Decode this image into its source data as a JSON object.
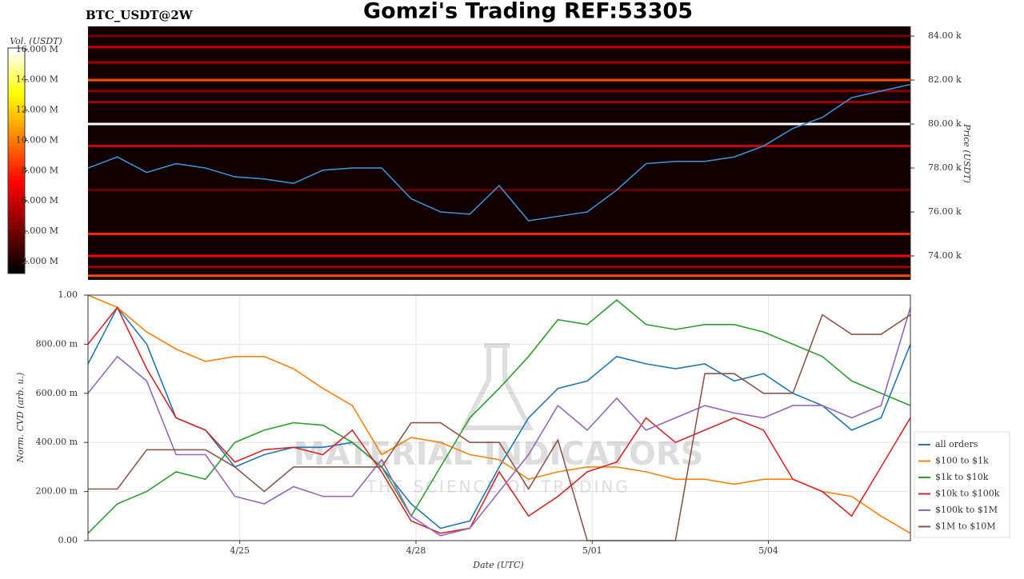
{
  "title": "Gomzi's Trading REF:53305",
  "watermark": {
    "title": "MATERIAL INDICATORS",
    "subtitle": "THE SCIENCE OF TRADING"
  },
  "chart_data": [
    {
      "type": "heatmap",
      "title": "BTC_USDT@2W",
      "ylabel": "Price (USDT)",
      "colorbar_label": "Vol. (USDT)",
      "x": [
        "4/22 10:00",
        "4/22 22:00",
        "4/23 10:00",
        "4/23 22:00",
        "4/24 10:00",
        "4/24 22:00",
        "4/25 10:00",
        "4/25 22:00",
        "4/26 10:00",
        "4/26 22:00",
        "4/27 10:00",
        "4/27 22:00",
        "4/28 10:00",
        "4/28 22:00",
        "4/29 10:00",
        "4/29 22:00",
        "4/30 10:00",
        "4/30 22:00",
        "5/01 10:00",
        "5/01 22:00",
        "5/02 10:00",
        "5/02 22:00",
        "5/03 10:00",
        "5/03 22:00",
        "5/04 10:00",
        "5/04 22:00",
        "5/05 10:00",
        "5/05 22:00",
        "5/06 10:00"
      ],
      "series": [
        {
          "name": "Price",
          "color": "#3b8fd0",
          "values": [
            78000,
            78500,
            77800,
            78200,
            78000,
            77600,
            77500,
            77300,
            77900,
            78000,
            78000,
            76600,
            76000,
            75900,
            77200,
            75600,
            75800,
            76000,
            77000,
            78200,
            78300,
            78300,
            78500,
            79000,
            79800,
            80300,
            81200,
            81500,
            81800
          ]
        }
      ],
      "levels": {
        "prices": [
          84000,
          83500,
          82800,
          82000,
          81500,
          81000,
          80000,
          79000,
          77000,
          75000,
          74000,
          73500,
          73100
        ],
        "volumes": [
          4000000,
          6000000,
          5000000,
          9000000,
          4500000,
          5000000,
          16000000,
          6000000,
          3500000,
          8000000,
          7000000,
          5000000,
          9000000
        ]
      },
      "xlim": [
        "4/22 10:00",
        "5/06 10:00"
      ],
      "ylim": [
        72910,
        84440
      ],
      "yticks": [
        {
          "value": 74000,
          "label": "74.00 k"
        },
        {
          "value": 76000,
          "label": "76.00 k"
        },
        {
          "value": 78000,
          "label": "78.00 k"
        },
        {
          "value": 80000,
          "label": "80.00 k"
        },
        {
          "value": 82000,
          "label": "82.00 k"
        },
        {
          "value": 84000,
          "label": "84.00 k"
        }
      ],
      "clim": [
        1200000,
        16100000
      ],
      "cticks": [
        {
          "value": 2000000,
          "label": "2.000 M"
        },
        {
          "value": 4000000,
          "label": "4.000 M"
        },
        {
          "value": 6000000,
          "label": "6.000 M"
        },
        {
          "value": 8000000,
          "label": "8.000 M"
        },
        {
          "value": 10000000,
          "label": "10.000 M"
        },
        {
          "value": 12000000,
          "label": "12.000 M"
        },
        {
          "value": 14000000,
          "label": "14.000 M"
        },
        {
          "value": 16000000,
          "label": "16.000 M"
        }
      ]
    },
    {
      "type": "line",
      "xlabel": "Date (UTC)",
      "ylabel": "Norm. CVD (arb. u.)",
      "grid": true,
      "legend": "lower right",
      "x": [
        "4/22 10:00",
        "4/22 22:00",
        "4/23 10:00",
        "4/23 22:00",
        "4/24 10:00",
        "4/24 22:00",
        "4/25 10:00",
        "4/25 22:00",
        "4/26 10:00",
        "4/26 22:00",
        "4/27 10:00",
        "4/27 22:00",
        "4/28 10:00",
        "4/28 22:00",
        "4/29 10:00",
        "4/29 22:00",
        "4/30 10:00",
        "4/30 22:00",
        "5/01 10:00",
        "5/01 22:00",
        "5/02 10:00",
        "5/02 22:00",
        "5/03 10:00",
        "5/03 22:00",
        "5/04 10:00",
        "5/04 22:00",
        "5/05 10:00",
        "5/05 22:00",
        "5/06 10:00"
      ],
      "series": [
        {
          "name": "all orders",
          "color": "#1f77b4",
          "values": [
            0.72,
            0.95,
            0.8,
            0.5,
            0.45,
            0.3,
            0.35,
            0.38,
            0.38,
            0.4,
            0.3,
            0.15,
            0.05,
            0.08,
            0.3,
            0.5,
            0.62,
            0.65,
            0.75,
            0.72,
            0.7,
            0.72,
            0.65,
            0.68,
            0.6,
            0.55,
            0.45,
            0.5,
            0.8
          ]
        },
        {
          "name": "$100 to $1k",
          "color": "#ff7f0e",
          "values": [
            1.0,
            0.95,
            0.85,
            0.78,
            0.73,
            0.75,
            0.75,
            0.7,
            0.62,
            0.55,
            0.35,
            0.42,
            0.4,
            0.35,
            0.33,
            0.25,
            0.28,
            0.3,
            0.3,
            0.28,
            0.25,
            0.25,
            0.23,
            0.25,
            0.25,
            0.2,
            0.18,
            0.1,
            0.03
          ]
        },
        {
          "name": "$1k to $10k",
          "color": "#2ca02c",
          "values": [
            0.03,
            0.15,
            0.2,
            0.28,
            0.25,
            0.4,
            0.45,
            0.48,
            0.47,
            0.4,
            0.3,
            0.1,
            0.3,
            0.5,
            0.62,
            0.75,
            0.9,
            0.88,
            0.98,
            0.88,
            0.86,
            0.88,
            0.88,
            0.85,
            0.8,
            0.75,
            0.65,
            0.6,
            0.55
          ]
        },
        {
          "name": "$10k to $100k",
          "color": "#d62728",
          "values": [
            0.8,
            0.95,
            0.7,
            0.5,
            0.45,
            0.32,
            0.37,
            0.38,
            0.35,
            0.45,
            0.28,
            0.08,
            0.03,
            0.05,
            0.28,
            0.1,
            0.18,
            0.28,
            0.32,
            0.5,
            0.4,
            0.45,
            0.5,
            0.45,
            0.25,
            0.2,
            0.1,
            0.3,
            0.5
          ]
        },
        {
          "name": "$100k to $1M",
          "color": "#9467bd",
          "values": [
            0.6,
            0.75,
            0.65,
            0.35,
            0.35,
            0.18,
            0.15,
            0.22,
            0.18,
            0.18,
            0.33,
            0.1,
            0.02,
            0.05,
            0.2,
            0.35,
            0.55,
            0.45,
            0.58,
            0.45,
            0.5,
            0.55,
            0.52,
            0.5,
            0.55,
            0.55,
            0.5,
            0.55,
            0.95
          ]
        },
        {
          "name": "$1M to $10M",
          "color": "#8c564b",
          "values": [
            0.21,
            0.21,
            0.37,
            0.37,
            0.37,
            0.3,
            0.2,
            0.3,
            0.3,
            0.3,
            0.3,
            0.48,
            0.48,
            0.4,
            0.4,
            0.21,
            0.41,
            0,
            0,
            0,
            0,
            0.68,
            0.68,
            0.6,
            0.6,
            0.92,
            0.84,
            0.84,
            0.92
          ]
        }
      ],
      "xlim": [
        "4/22 10:00",
        "5/06 10:00"
      ],
      "ylim": [
        0,
        1
      ],
      "xticks": [
        "4/25",
        "4/28",
        "5/01",
        "5/04"
      ],
      "yticks": [
        {
          "value": 0,
          "label": "0.00"
        },
        {
          "value": 0.2,
          "label": "200.00 m"
        },
        {
          "value": 0.4,
          "label": "400.00 m"
        },
        {
          "value": 0.6,
          "label": "600.00 m"
        },
        {
          "value": 0.8,
          "label": "800.00 m"
        },
        {
          "value": 1,
          "label": "1.00"
        }
      ]
    }
  ]
}
